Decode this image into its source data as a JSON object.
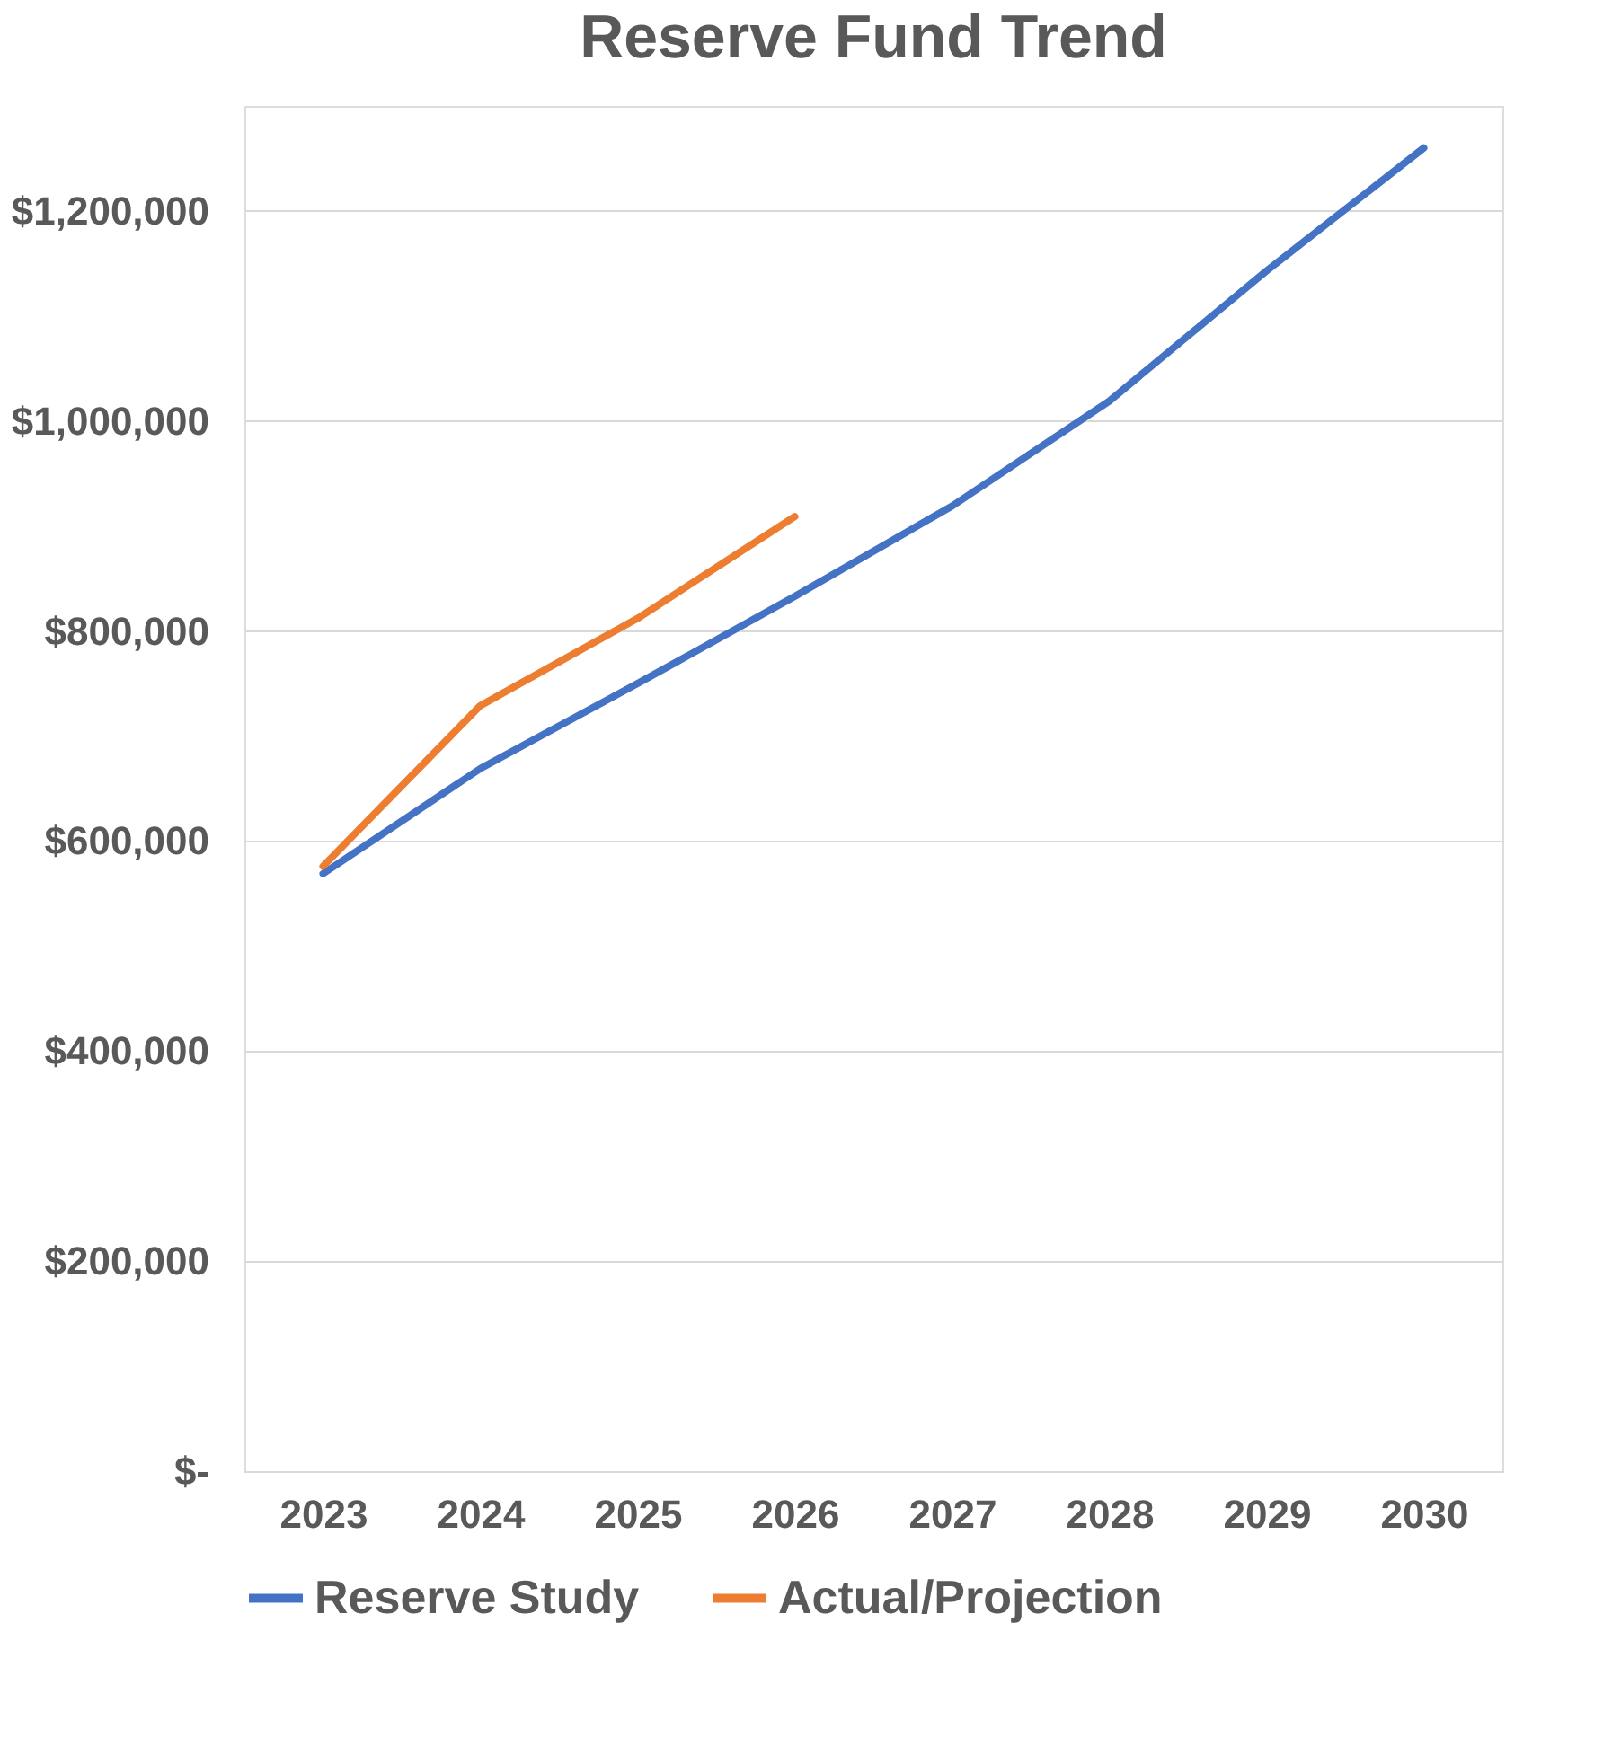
{
  "chart_data": {
    "type": "line",
    "title": "Reserve Fund Trend",
    "categories": [
      "2023",
      "2024",
      "2025",
      "2026",
      "2027",
      "2028",
      "2029",
      "2030"
    ],
    "series": [
      {
        "name": "Reserve Study",
        "color": "#4472c4",
        "values": [
          569000,
          669000,
          750000,
          833000,
          919000,
          1019000,
          1143000,
          1260000
        ]
      },
      {
        "name": "Actual/Projection",
        "color": "#ed7d31",
        "values": [
          576000,
          729000,
          812000,
          909000,
          null,
          null,
          null,
          null
        ]
      }
    ],
    "ylim": [
      0,
      1300000
    ],
    "yticks": [
      {
        "value": 0,
        "label": "$-"
      },
      {
        "value": 200000,
        "label": "$200,000"
      },
      {
        "value": 400000,
        "label": "$400,000"
      },
      {
        "value": 600000,
        "label": "$600,000"
      },
      {
        "value": 800000,
        "label": "$800,000"
      },
      {
        "value": 1000000,
        "label": "$1,000,000"
      },
      {
        "value": 1200000,
        "label": "$1,200,000"
      }
    ],
    "grid": "y",
    "legend": "bottom",
    "marker": "none",
    "line_style": "solid"
  }
}
